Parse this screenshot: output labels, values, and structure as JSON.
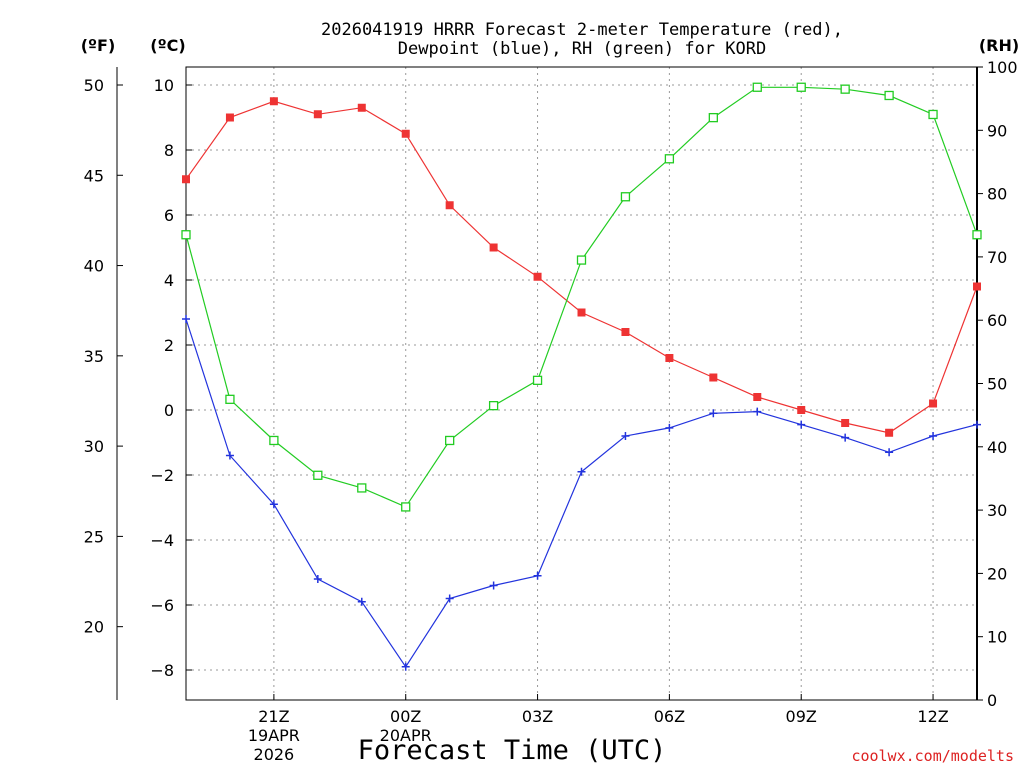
{
  "chart_data": {
    "type": "line",
    "title_line1": "2026041919 HRRR Forecast 2-meter Temperature (red),",
    "title_line2": "Dewpoint (blue), RH (green) for KORD",
    "xlabel": "Forecast Time (UTC)",
    "credit": "coolwx.com/modelts",
    "unit_f": "(ºF)",
    "unit_c": "(ºC)",
    "unit_rh": "(RH)",
    "x_hours": [
      0,
      1,
      2,
      3,
      4,
      5,
      6,
      7,
      8,
      9,
      10,
      11,
      12,
      13,
      14,
      15,
      16,
      17,
      18
    ],
    "xlim": [
      0,
      18
    ],
    "x_ticks": [
      {
        "hour": 2,
        "label": "21Z",
        "date": "19APR",
        "year": "2026"
      },
      {
        "hour": 5,
        "label": "00Z",
        "date": "20APR",
        "year": ""
      },
      {
        "hour": 8,
        "label": "03Z",
        "date": "",
        "year": ""
      },
      {
        "hour": 11,
        "label": "06Z",
        "date": "",
        "year": ""
      },
      {
        "hour": 14,
        "label": "09Z",
        "date": "",
        "year": ""
      },
      {
        "hour": 17,
        "label": "12Z",
        "date": "",
        "year": ""
      }
    ],
    "c_axis": {
      "ylim": [
        -9,
        10.5
      ],
      "ticks": [
        "10",
        "8",
        "6",
        "4",
        "2",
        "0",
        "−2",
        "−4",
        "−6",
        "−8"
      ],
      "tick_values": [
        10,
        8,
        6,
        4,
        2,
        0,
        -2,
        -4,
        -6,
        -8
      ]
    },
    "f_axis": {
      "ticks": [
        "50",
        "45",
        "40",
        "35",
        "30",
        "25",
        "20"
      ],
      "tick_values": [
        50,
        45,
        40,
        35,
        30,
        25,
        20
      ]
    },
    "rh_axis": {
      "ylim": [
        0,
        100
      ],
      "ticks": [
        "100",
        "90",
        "80",
        "70",
        "60",
        "50",
        "40",
        "30",
        "20",
        "10",
        "0"
      ],
      "tick_values": [
        100,
        90,
        80,
        70,
        60,
        50,
        40,
        30,
        20,
        10,
        0
      ]
    },
    "series": [
      {
        "name": "Temperature",
        "color": "#ee3333",
        "marker": "filled-square",
        "axis": "C",
        "values": [
          7.1,
          9.0,
          9.5,
          9.1,
          9.3,
          8.5,
          6.3,
          5.0,
          4.1,
          3.0,
          2.4,
          1.6,
          1.0,
          0.4,
          0.0,
          -0.4,
          -0.7,
          0.2,
          3.8
        ]
      },
      {
        "name": "Dewpoint",
        "color": "#2233dd",
        "marker": "plus",
        "axis": "C",
        "values": [
          2.8,
          -1.4,
          -2.9,
          -5.2,
          -5.9,
          -7.9,
          -5.8,
          -5.4,
          -5.1,
          -1.9,
          -0.8,
          -0.55,
          -0.1,
          -0.05,
          -0.45,
          -0.85,
          -1.3,
          -0.8,
          -0.45
        ]
      },
      {
        "name": "RH",
        "color": "#22cc22",
        "marker": "open-square",
        "axis": "RH",
        "values": [
          73.5,
          47.5,
          41.0,
          35.5,
          33.5,
          30.5,
          41.0,
          46.5,
          50.5,
          69.5,
          79.5,
          85.5,
          92.0,
          96.8,
          96.8,
          96.5,
          95.5,
          92.5,
          73.5
        ]
      }
    ]
  }
}
